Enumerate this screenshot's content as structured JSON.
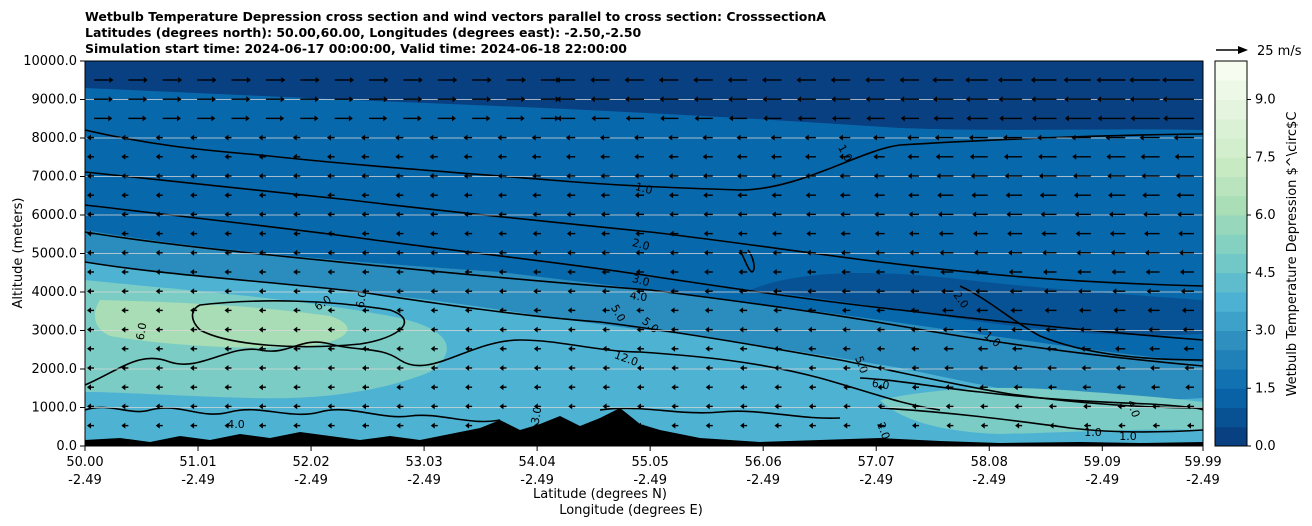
{
  "chart_data": {
    "type": "contour",
    "title_lines": [
      "Wetbulb Temperature Depression cross section and wind vectors parallel to cross section: CrosssectionA",
      "Latitudes (degrees north): 50.00,60.00, Longitudes (degrees east): -2.50,-2.50",
      "Simulation start time: 2024-06-17 00:00:00, Valid time: 2024-06-18 22:00:00"
    ],
    "ylabel": "Altitude (meters)",
    "xlabel_lines": [
      "Latitude (degrees N)",
      "Longitude (degrees E)"
    ],
    "y_ticks": [
      "0.0",
      "1000.0",
      "2000.0",
      "3000.0",
      "4000.0",
      "5000.0",
      "6000.0",
      "7000.0",
      "8000.0",
      "9000.0",
      "10000.0"
    ],
    "y_values": [
      0,
      1000,
      2000,
      3000,
      4000,
      5000,
      6000,
      7000,
      8000,
      9000,
      10000
    ],
    "ylim": [
      0,
      10000
    ],
    "x_ticks_lat": [
      "50.00",
      "51.01",
      "52.02",
      "53.03",
      "54.04",
      "55.05",
      "56.06",
      "57.07",
      "58.08",
      "59.09",
      "59.99"
    ],
    "x_ticks_lon": [
      "-2.49",
      "-2.49",
      "-2.49",
      "-2.49",
      "-2.49",
      "-2.49",
      "-2.49",
      "-2.49",
      "-2.49",
      "-2.49",
      "-2.49"
    ],
    "xlim": [
      50.0,
      59.99
    ],
    "grid": "horizontal",
    "colorbar": {
      "label": "Wetbulb Temperature Depression $^\\circ$C",
      "ticks": [
        "0.0",
        "1.5",
        "3.0",
        "4.5",
        "6.0",
        "7.5",
        "9.0"
      ],
      "tick_values": [
        0,
        1.5,
        3,
        4.5,
        6,
        7.5,
        9
      ],
      "range": [
        0,
        10
      ],
      "colors": [
        "#084081",
        "#0868ac",
        "#2b8cbe",
        "#4eb3d3",
        "#7bccc4",
        "#a8ddb5",
        "#ccebc5",
        "#e0f3db",
        "#f7fcf0"
      ]
    },
    "contour_labels": [
      "1.0",
      "1.0",
      "2.0",
      "3.0",
      "4.0",
      "5.0",
      "5.0",
      "6.0",
      "6.0",
      "6.0",
      "2.0",
      "1.0",
      "5.0",
      "4.0",
      "12.0",
      "6.0",
      "2.0",
      "1.0",
      "4.0",
      "3.0",
      "1.0"
    ],
    "quiver_key": {
      "label": "25 m/s",
      "value": 25
    }
  }
}
